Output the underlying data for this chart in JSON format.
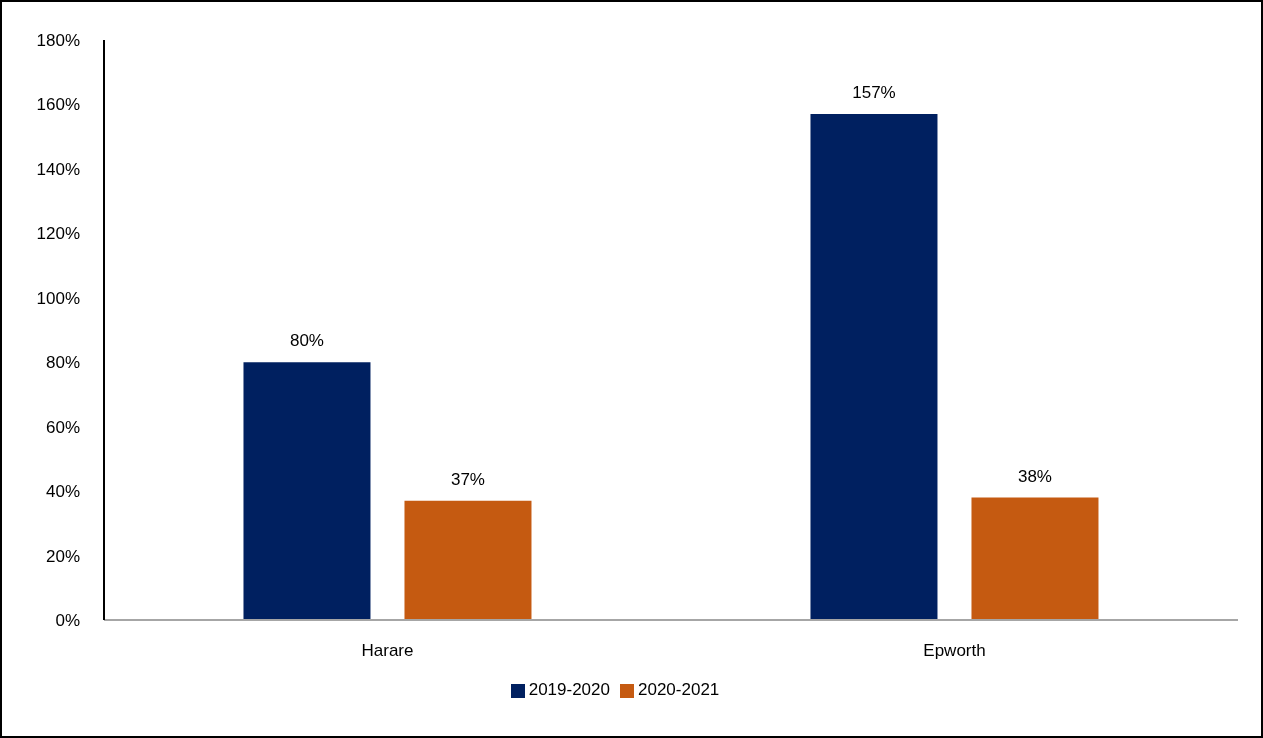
{
  "chart_data": {
    "type": "bar",
    "categories": [
      "Harare",
      "Epworth"
    ],
    "series": [
      {
        "name": "2019-2020",
        "color": "#002060",
        "values": [
          80,
          157
        ],
        "value_labels": [
          "80%",
          "157%"
        ]
      },
      {
        "name": "2020-2021",
        "color": "#c55a11",
        "values": [
          37,
          38
        ],
        "value_labels": [
          "37%",
          "38%"
        ]
      }
    ],
    "ylim": [
      0,
      180
    ],
    "yticks": [
      {
        "value": 0,
        "label": "0%"
      },
      {
        "value": 20,
        "label": "20%"
      },
      {
        "value": 40,
        "label": "40%"
      },
      {
        "value": 60,
        "label": "60%"
      },
      {
        "value": 80,
        "label": "80%"
      },
      {
        "value": 100,
        "label": "100%"
      },
      {
        "value": 120,
        "label": "120%"
      },
      {
        "value": 140,
        "label": "140%"
      },
      {
        "value": 160,
        "label": "160%"
      },
      {
        "value": 180,
        "label": "180%"
      }
    ],
    "grid": false,
    "legend": "bottom"
  }
}
